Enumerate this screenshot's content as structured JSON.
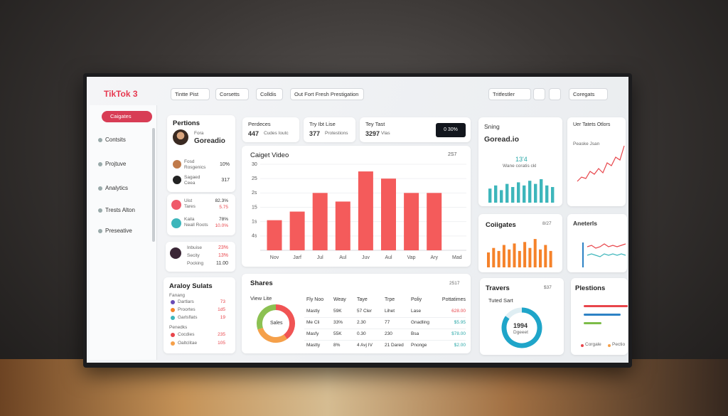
{
  "header": {
    "logo": "TikTok 3",
    "tabs": [
      "Tintte Pist",
      "Corsetts",
      "Colldis",
      "Out Fort Fresh Prestigation"
    ],
    "search": "Tritfestler",
    "menu": "Coregats"
  },
  "sidebar": {
    "active": "Caigates",
    "items": [
      "Contsits",
      "Projtuve",
      "Analytics",
      "Trests Alton",
      "Preseative"
    ]
  },
  "profile": {
    "title": "Pertions",
    "caption": "Fora",
    "name": "Goreadio",
    "rows": [
      {
        "label": "Fosd",
        "sub": "Rosgenics",
        "value": "10%"
      },
      {
        "label": "Sagaed",
        "sub": "Ceea",
        "value": "317"
      }
    ]
  },
  "list": {
    "rows": [
      {
        "label": "Uist",
        "sub": "Tares",
        "value": "82.3%",
        "extra": "5.75"
      },
      {
        "label": "Kaila",
        "sub": "Neall Roots",
        "value": "78%",
        "extra": "10.0%"
      }
    ]
  },
  "stats": {
    "labels": [
      "Inbuise",
      "Secity",
      "Pocking"
    ],
    "values": [
      "23%",
      "13%",
      "11.00"
    ]
  },
  "summary": {
    "title": "Araloy Sulats",
    "group1": "Fanang",
    "rows1": [
      [
        "Dartlars",
        "73"
      ],
      [
        "Proortes",
        "1d5"
      ],
      [
        "Garlsflats",
        "19"
      ]
    ],
    "group2": "Penedks",
    "rows2": [
      [
        "Cocdies",
        "235"
      ],
      [
        "Oaltclitae",
        "105"
      ]
    ]
  },
  "kpis": [
    {
      "label": "Perdeces",
      "value": "447",
      "sub": "Cudes Ioutc"
    },
    {
      "label": "Try Ibt Lise",
      "value": "377",
      "sub": "Protestions"
    },
    {
      "label": "Tey Tast",
      "value": "3297",
      "sub": "Vlas"
    }
  ],
  "kpi_button": "0 30%",
  "video_badge": "2S7",
  "chart_data": {
    "type": "bar",
    "title": "Caiget Video",
    "categories": [
      "Nov",
      "Jarf",
      "Jul",
      "Aul",
      "Juv",
      "Aul",
      "Vap",
      "Ary",
      "Mad"
    ],
    "values": [
      10.5,
      13.5,
      20,
      17,
      27.5,
      25,
      20,
      20,
      null
    ],
    "color": "#f45b5b",
    "ylim": [
      0,
      30
    ],
    "yticks": [
      {
        "value": 5,
        "label": "4s"
      },
      {
        "value": 10,
        "label": "1s"
      },
      15,
      {
        "value": 20,
        "label": "2s"
      },
      25,
      30
    ],
    "grid": true
  },
  "shares": {
    "title": "Shares",
    "badge": "2517",
    "view": "View Lite",
    "donut_label": "Sales",
    "donut": {
      "values": [
        40,
        30,
        30
      ],
      "colors": [
        "#f05454",
        "#f5a04a",
        "#8cc152"
      ]
    },
    "columns": [
      "Fly Noo",
      "Weay",
      "Taye",
      "Trpe",
      "Poliy",
      "Pottatimes"
    ],
    "rows": [
      [
        "Mastly",
        "59K",
        "57 Cler",
        "Lihet",
        "Lase",
        "628.00"
      ],
      [
        "Me Cli",
        "33%",
        "2.30",
        "77",
        "Gnadling",
        "$5.95"
      ],
      [
        "Masfy",
        "55K",
        "0.30",
        "230",
        "Bsa",
        "$78.00"
      ],
      [
        "Mastty",
        "8%",
        "4 Avj IV",
        "21 Dared",
        "Pnonge",
        "$2.00"
      ]
    ]
  },
  "sning": {
    "title": "Sning",
    "name": "Goread.io",
    "value": "13'4",
    "caption": "Wane coratis ckl",
    "color": "#3db6bb",
    "bars": [
      18,
      22,
      16,
      24,
      20,
      26,
      22,
      28,
      24,
      30,
      22,
      20
    ]
  },
  "targets": {
    "title": "Uer Tatets Otlors",
    "caption": "Peaske Jsan",
    "color": "#e8454b",
    "line": [
      5,
      8,
      7,
      12,
      10,
      14,
      11,
      18,
      16,
      22,
      20,
      30
    ]
  },
  "coligates": {
    "title": "Coiigates",
    "badge": "8/27",
    "color": "#f5822a",
    "bars": [
      20,
      26,
      22,
      30,
      24,
      32,
      22,
      34,
      26,
      38,
      24,
      30,
      22
    ]
  },
  "anet": {
    "title": "Aneterls",
    "lines": [
      {
        "color": "#e8454b",
        "values": [
          12,
          13,
          11,
          12,
          14,
          12,
          13,
          12,
          13,
          14
        ]
      },
      {
        "color": "#3db6bb",
        "values": [
          6,
          7,
          6,
          5,
          7,
          6,
          7,
          6,
          7,
          6
        ]
      }
    ]
  },
  "travers": {
    "title": "Travers",
    "badge": "$37",
    "caption": "Tuted Sart",
    "center": "1994",
    "center_sub": "Dgeeet",
    "donut": {
      "values": [
        85,
        15
      ],
      "colors": [
        "#1fa5c9",
        "#dfeef3"
      ]
    }
  },
  "plestions": {
    "title": "Plestions",
    "bars": [
      {
        "color": "#e8454b",
        "value": 62
      },
      {
        "color": "#2d82c5",
        "value": 52
      },
      {
        "color": "#7cbc48",
        "value": 25
      }
    ],
    "legend": [
      "Corgale",
      "Pectio"
    ]
  }
}
